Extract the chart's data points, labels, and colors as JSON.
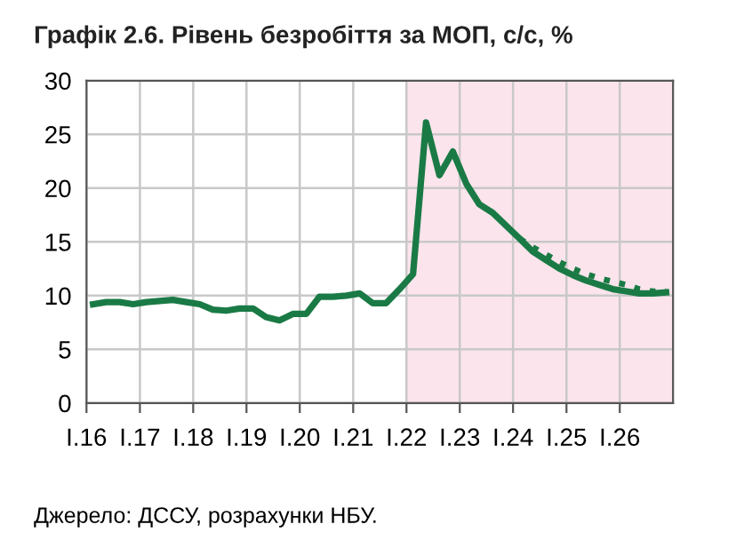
{
  "chart_data": {
    "type": "line",
    "title": "Графік 2.6. Рівень безробіття за МОП, с/с, %",
    "annotations": [
      "Джерело: ДССУ, розрахунки НБУ."
    ],
    "x": [
      "2016-02-15",
      "2016-05-15",
      "2016-08-15",
      "2016-11-15",
      "2017-02-15",
      "2017-05-15",
      "2017-08-15",
      "2017-11-15",
      "2018-02-15",
      "2018-05-15",
      "2018-08-15",
      "2018-11-15",
      "2019-02-15",
      "2019-05-15",
      "2019-08-15",
      "2019-11-15",
      "2020-02-15",
      "2020-05-15",
      "2020-08-15",
      "2020-11-15",
      "2021-02-15",
      "2021-05-15",
      "2021-08-15",
      "2021-11-15",
      "2022-02-15",
      "2022-05-15",
      "2022-08-15",
      "2022-11-15",
      "2023-02-15",
      "2023-05-15",
      "2023-08-15",
      "2023-11-15",
      "2024-02-15",
      "2024-05-15",
      "2024-08-15",
      "2024-11-15",
      "2025-02-15",
      "2025-05-15",
      "2025-08-15",
      "2025-11-15",
      "2026-02-15",
      "2026-05-15",
      "2026-08-15",
      "2026-11-15"
    ],
    "xlim": [
      "2016-01-01",
      "2027-01-01"
    ],
    "xticks": [
      {
        "value": "2016-01-01",
        "label": "I.16"
      },
      {
        "value": "2017-01-01",
        "label": "I.17"
      },
      {
        "value": "2018-01-01",
        "label": "I.18"
      },
      {
        "value": "2019-01-01",
        "label": "I.19"
      },
      {
        "value": "2020-01-01",
        "label": "I.20"
      },
      {
        "value": "2021-01-01",
        "label": "I.21"
      },
      {
        "value": "2022-01-01",
        "label": "I.22"
      },
      {
        "value": "2023-01-01",
        "label": "I.23"
      },
      {
        "value": "2024-01-01",
        "label": "I.24"
      },
      {
        "value": "2025-01-01",
        "label": "I.25"
      },
      {
        "value": "2026-01-01",
        "label": "I.26"
      }
    ],
    "ylim": [
      0,
      30
    ],
    "yticks": [
      0,
      5,
      10,
      15,
      20,
      25,
      30
    ],
    "grid": true,
    "legend": false,
    "bands": [
      {
        "axis": "x",
        "from": "2022-01-01",
        "to": "2027-01-01",
        "color": "#fce4ec"
      }
    ],
    "series": [
      {
        "color": "#1a7a45",
        "line_style": "dotted",
        "values": [
          null,
          null,
          null,
          null,
          null,
          null,
          null,
          null,
          null,
          null,
          null,
          null,
          null,
          null,
          null,
          null,
          null,
          null,
          null,
          null,
          null,
          null,
          null,
          null,
          null,
          null,
          null,
          null,
          null,
          null,
          null,
          null,
          15.3,
          14.5,
          13.8,
          13.1,
          12.5,
          12.0,
          11.6,
          11.3,
          11.0,
          10.6,
          10.4,
          10.4
        ]
      },
      {
        "color": "#1a7a45",
        "line_style": "solid",
        "values": [
          9.2,
          9.4,
          9.4,
          9.2,
          9.4,
          9.5,
          9.6,
          9.4,
          9.2,
          8.7,
          8.6,
          8.8,
          8.8,
          8.0,
          7.7,
          8.3,
          8.3,
          9.9,
          9.9,
          10.0,
          10.2,
          9.3,
          9.3,
          10.6,
          12.0,
          26.1,
          21.2,
          23.4,
          20.4,
          18.5,
          17.7,
          16.5,
          15.3,
          14.1,
          13.3,
          12.5,
          11.9,
          11.4,
          11.0,
          10.6,
          10.4,
          10.2,
          10.2,
          10.3
        ]
      }
    ]
  }
}
